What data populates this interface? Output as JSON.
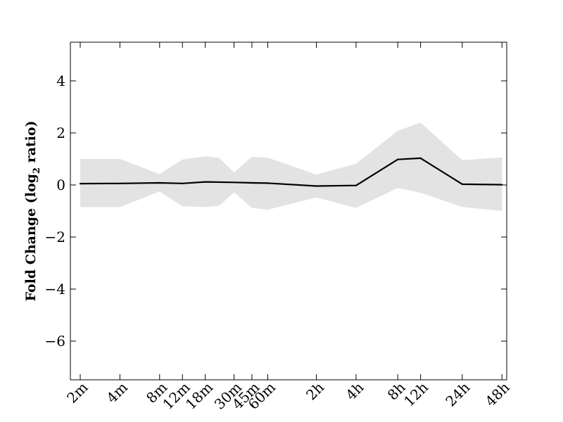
{
  "chart_data": {
    "type": "line",
    "title": "",
    "xlabel": "",
    "ylabel": "Fold Change (log",
    "ylabel_sub": "2",
    "ylabel_suffix": " ratio)",
    "x_ticks": [
      "2m",
      "4m",
      "8m",
      "12m",
      "18m",
      "30m",
      "45m",
      "60m",
      "2h",
      "4h",
      "8h",
      "12h",
      "24h",
      "48h"
    ],
    "y_ticks": [
      4,
      2,
      0,
      -2,
      -4,
      -6
    ],
    "ylim": [
      -7.5,
      5.5
    ],
    "grid": false,
    "series": [
      {
        "values": [
          0.05,
          0.06,
          0.08,
          0.06,
          0.12,
          0.1,
          0.08,
          0.07,
          -0.04,
          -0.02,
          0.98,
          1.03,
          0.03,
          0.01
        ],
        "x": [
          0,
          2,
          4,
          5.15,
          6.3,
          7.75,
          8.65,
          9.45,
          11.9,
          13.9,
          16.0,
          17.15,
          19.25,
          21.25
        ],
        "band_upper": [
          1.0,
          1.0,
          0.42,
          0.98,
          1.1,
          0.48,
          1.08,
          1.05,
          0.4,
          0.82,
          2.08,
          2.4,
          0.95,
          1.06
        ],
        "band_lower": [
          -0.85,
          -0.85,
          -0.25,
          -0.82,
          -0.85,
          -0.28,
          -0.88,
          -0.95,
          -0.48,
          -0.88,
          -0.12,
          -0.3,
          -0.85,
          -1.0
        ],
        "band_color": "#e3e3e3",
        "line_color": "#000000"
      }
    ],
    "extra_band_points": [
      {
        "x": 7.0,
        "upper": 1.05,
        "lower": -0.8
      }
    ]
  }
}
